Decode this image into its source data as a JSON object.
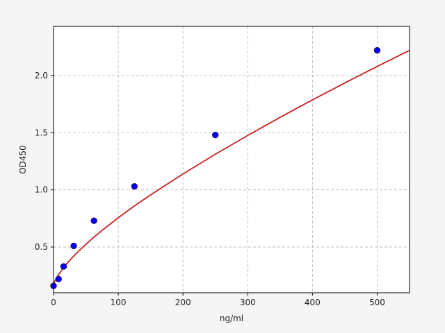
{
  "chart_data": {
    "type": "scatter",
    "title": "",
    "xlabel": "ng/ml",
    "ylabel": "OD450",
    "xlim": [
      0,
      550
    ],
    "ylim": [
      0.1,
      2.43
    ],
    "grid": true,
    "x_ticks": [
      0,
      100,
      200,
      300,
      400,
      500
    ],
    "x_tick_labels": [
      "0",
      "100",
      "200",
      "300",
      "400",
      "500"
    ],
    "y_ticks": [
      0.5,
      1.0,
      1.5,
      2.0
    ],
    "y_tick_labels": [
      "0.5",
      "1.0",
      "1.5",
      "2.0"
    ],
    "points": {
      "x": [
        0,
        7.8,
        15.6,
        31.25,
        62.5,
        125,
        250,
        500
      ],
      "y": [
        0.16,
        0.22,
        0.33,
        0.51,
        0.73,
        1.03,
        1.48,
        2.22
      ]
    },
    "fit_curve": {
      "x": [
        0,
        1,
        2,
        4,
        7,
        10,
        15,
        20,
        30,
        40,
        50,
        62.5,
        75,
        100,
        125,
        150,
        200,
        250,
        300,
        350,
        400,
        450,
        500,
        550
      ],
      "y": [
        0.15,
        0.183,
        0.199,
        0.223,
        0.251,
        0.277,
        0.316,
        0.351,
        0.414,
        0.471,
        0.524,
        0.587,
        0.646,
        0.756,
        0.859,
        0.956,
        1.139,
        1.312,
        1.476,
        1.634,
        1.787,
        1.935,
        2.079,
        2.22
      ]
    },
    "colors": {
      "points": "#0000ee",
      "point_edge": "#3a0a6e",
      "curve": "#cc1f1f",
      "grid": "#b0b0b0",
      "axes_bg": "#ffffff",
      "figure_bg": "#f5f5f5"
    }
  }
}
